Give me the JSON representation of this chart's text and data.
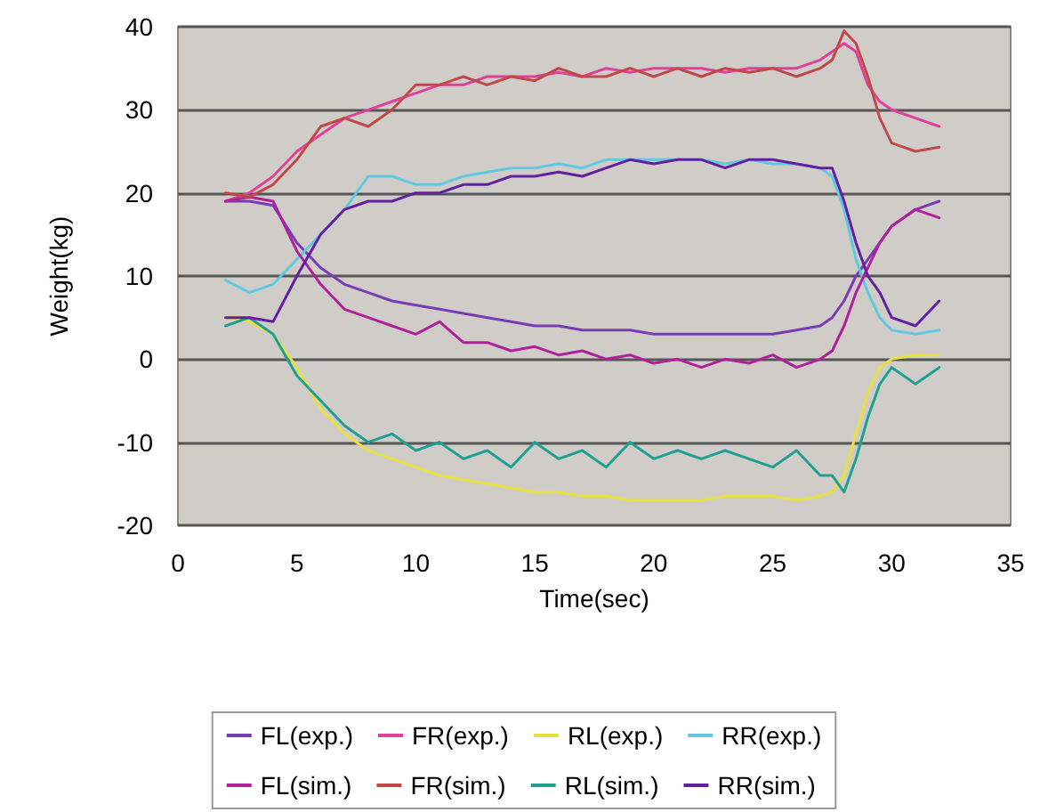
{
  "chart_data": {
    "type": "line",
    "xlabel": "Time(sec)",
    "ylabel": "Weight(kg)",
    "x": [
      2,
      3,
      4,
      5,
      6,
      7,
      8,
      9,
      10,
      11,
      12,
      13,
      14,
      15,
      16,
      17,
      18,
      19,
      20,
      21,
      22,
      23,
      24,
      25,
      26,
      27,
      27.5,
      28,
      28.5,
      29,
      29.5,
      30,
      31,
      32
    ],
    "xlim": [
      0,
      35
    ],
    "xticks": [
      0,
      5,
      10,
      15,
      20,
      25,
      30,
      35
    ],
    "ylim": [
      -20,
      40
    ],
    "yticks": [
      -20,
      -10,
      0,
      10,
      20,
      30,
      40
    ],
    "grid": "y",
    "legend": "bottom",
    "marker": "none",
    "line_style": "solid",
    "series": [
      {
        "name": "FL(exp.)",
        "color": "#7a3cb4",
        "values": [
          19,
          19,
          18.5,
          14,
          11,
          9,
          8,
          7,
          6.5,
          6,
          5.5,
          5,
          4.5,
          4,
          4,
          3.5,
          3.5,
          3.5,
          3,
          3,
          3,
          3,
          3,
          3,
          3.5,
          4,
          5,
          7,
          10,
          12,
          14,
          16,
          18,
          19
        ]
      },
      {
        "name": "FR(exp.)",
        "color": "#e0409a",
        "values": [
          19,
          20,
          22,
          25,
          27,
          29,
          30,
          31,
          32,
          33,
          33,
          34,
          34,
          34,
          34.5,
          34,
          35,
          34.5,
          35,
          35,
          35,
          34.5,
          35,
          35,
          35,
          36,
          37,
          38,
          37,
          33,
          31,
          30,
          29,
          28
        ]
      },
      {
        "name": "RL(exp.)",
        "color": "#e6e040",
        "values": [
          5,
          4.5,
          3,
          -1,
          -6,
          -9,
          -11,
          -12,
          -13,
          -14,
          -14.5,
          -15,
          -15.5,
          -16,
          -16,
          -16.5,
          -16.5,
          -17,
          -17,
          -17,
          -17,
          -16.5,
          -16.5,
          -16.5,
          -17,
          -16.5,
          -16,
          -14,
          -9,
          -4,
          -1,
          0,
          0.5,
          0.5
        ]
      },
      {
        "name": "RR(exp.)",
        "color": "#60c8e0",
        "values": [
          9.5,
          8,
          9,
          12,
          15,
          18,
          22,
          22,
          21,
          21,
          22,
          22.5,
          23,
          23,
          23.5,
          23,
          24,
          24,
          24,
          24,
          24,
          23.5,
          24,
          23.5,
          23.5,
          23,
          22,
          18,
          12,
          8,
          5,
          3.5,
          3,
          3.5
        ]
      },
      {
        "name": "FL(sim.)",
        "color": "#b0209a",
        "values": [
          19,
          19.5,
          19,
          13,
          9,
          6,
          5,
          4,
          3,
          4.5,
          2,
          2,
          1,
          1.5,
          0.5,
          1,
          0,
          0.5,
          -0.5,
          0,
          -1,
          0,
          -0.5,
          0.5,
          -1,
          0,
          1,
          4,
          8,
          11,
          14,
          16,
          18,
          17
        ]
      },
      {
        "name": "FR(sim.)",
        "color": "#c04848",
        "values": [
          20,
          19.5,
          21,
          24,
          28,
          29,
          28,
          30,
          33,
          33,
          34,
          33,
          34,
          33.5,
          35,
          34,
          34,
          35,
          34,
          35,
          34,
          35,
          34.5,
          35,
          34,
          35,
          36,
          39.5,
          38,
          34,
          29,
          26,
          25,
          25.5
        ]
      },
      {
        "name": "RL(sim.)",
        "color": "#20a090",
        "values": [
          4,
          5,
          3,
          -2,
          -5,
          -8,
          -10,
          -9,
          -11,
          -10,
          -12,
          -11,
          -13,
          -10,
          -12,
          -11,
          -13,
          -10,
          -12,
          -11,
          -12,
          -11,
          -12,
          -13,
          -11,
          -14,
          -14,
          -16,
          -12,
          -7,
          -3,
          -1,
          -3,
          -1
        ]
      },
      {
        "name": "RR(sim.)",
        "color": "#6020a0",
        "values": [
          5,
          5,
          4.5,
          10,
          15,
          18,
          19,
          19,
          20,
          20,
          21,
          21,
          22,
          22,
          22.5,
          22,
          23,
          24,
          23.5,
          24,
          24,
          23,
          24,
          24,
          23.5,
          23,
          23,
          19,
          14,
          10,
          8,
          5,
          4,
          7
        ]
      }
    ]
  }
}
